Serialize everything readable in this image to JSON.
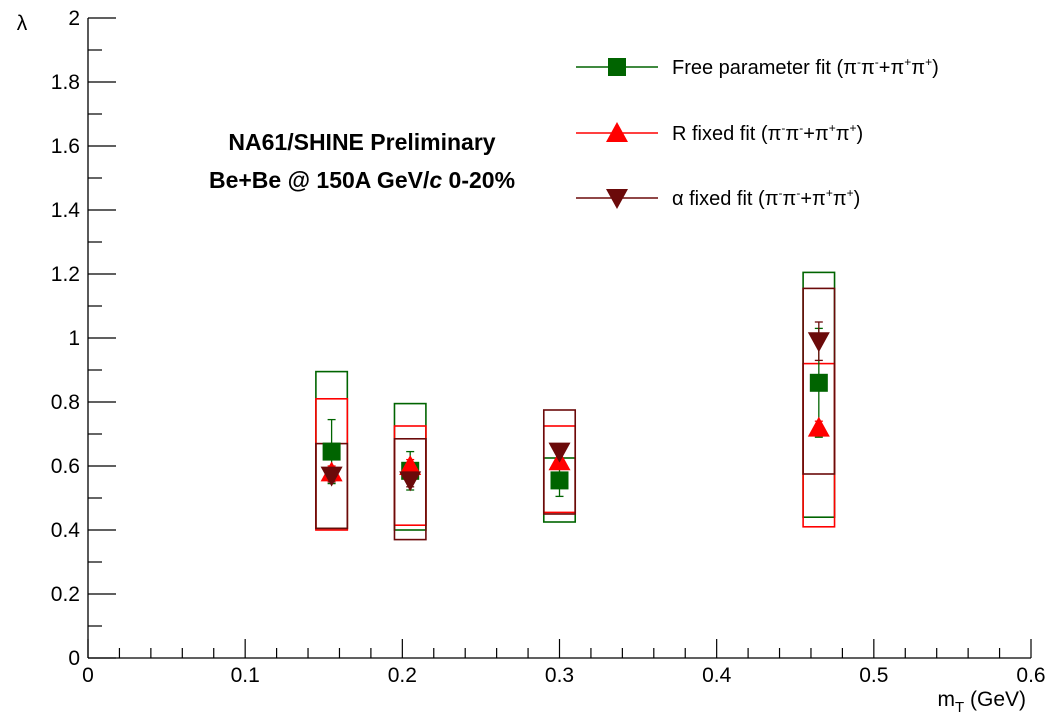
{
  "chart_data": {
    "type": "scatter",
    "title": "",
    "xlabel": "m_T (GeV)",
    "xlabel_main": "m",
    "xlabel_sub": "T",
    "xlabel_unit": " (GeV)",
    "ylabel": "λ",
    "xlim": [
      0,
      0.6
    ],
    "ylim": [
      0,
      2
    ],
    "x_ticks": [
      "0",
      "0.1",
      "0.2",
      "0.3",
      "0.4",
      "0.5",
      "0.6"
    ],
    "y_ticks": [
      "0",
      "0.2",
      "0.4",
      "0.6",
      "0.8",
      "1",
      "1.2",
      "1.4",
      "1.6",
      "1.8",
      "2"
    ],
    "grid": false,
    "legend_position": "top-right",
    "annotations": {
      "line1": "NA61/SHINE Preliminary",
      "line2_prefix": "Be+Be @ 150A GeV/",
      "line2_italic": "c",
      "line2_suffix": " 0-20%"
    },
    "series": [
      {
        "name": "Free parameter fit (π⁻π⁻+π⁺π⁺)",
        "legend_prefix": "Free parameter fit (",
        "marker": "square",
        "color": "#006400",
        "x": [
          0.155,
          0.205,
          0.3,
          0.465
        ],
        "y": [
          0.645,
          0.585,
          0.555,
          0.86
        ],
        "stat_err": [
          0.1,
          0.06,
          0.05,
          0.17
        ],
        "sys_low": [
          0.405,
          0.4,
          0.425,
          0.44
        ],
        "sys_high": [
          0.895,
          0.795,
          0.625,
          1.205
        ]
      },
      {
        "name": "R fixed fit (π⁻π⁻+π⁺π⁺)",
        "legend_prefix": "R fixed fit (",
        "marker": "triangle-up",
        "color": "#ff0000",
        "x": [
          0.155,
          0.205,
          0.3,
          0.465
        ],
        "y": [
          0.58,
          0.6,
          0.615,
          0.72
        ],
        "stat_err": [
          0.02,
          0.02,
          0.02,
          0.02
        ],
        "sys_low": [
          0.4,
          0.415,
          0.455,
          0.41
        ],
        "sys_high": [
          0.81,
          0.725,
          0.725,
          0.92
        ]
      },
      {
        "name": "α fixed fit (π⁻π⁻+π⁺π⁺)",
        "legend_prefix": "α fixed fit (",
        "marker": "triangle-down",
        "color": "#6b0a0a",
        "x": [
          0.155,
          0.205,
          0.3,
          0.465
        ],
        "y": [
          0.57,
          0.555,
          0.645,
          0.99
        ],
        "stat_err": [
          0.02,
          0.02,
          0.02,
          0.06
        ],
        "sys_low": [
          0.405,
          0.37,
          0.45,
          0.575
        ],
        "sys_high": [
          0.67,
          0.685,
          0.775,
          1.155
        ]
      }
    ]
  }
}
